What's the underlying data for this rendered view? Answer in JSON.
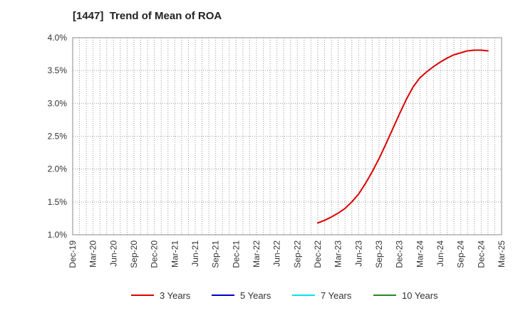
{
  "chart_data": {
    "type": "line",
    "title": "[1447]  Trend of Mean of ROA",
    "xlabel": "",
    "ylabel": "",
    "x_ticks": [
      "Dec-19",
      "Mar-20",
      "Jun-20",
      "Sep-20",
      "Dec-20",
      "Mar-21",
      "Jun-21",
      "Sep-21",
      "Dec-21",
      "Mar-22",
      "Jun-22",
      "Sep-22",
      "Dec-22",
      "Mar-23",
      "Jun-23",
      "Sep-23",
      "Dec-23",
      "Mar-24",
      "Jun-24",
      "Sep-24",
      "Dec-24",
      "Mar-25"
    ],
    "y_ticks": [
      "1.0%",
      "1.5%",
      "2.0%",
      "2.5%",
      "3.0%",
      "3.5%",
      "4.0%"
    ],
    "ylim": [
      1.0,
      4.0
    ],
    "y_unit": "%",
    "grid": true,
    "legend_position": "bottom",
    "series": [
      {
        "name": "3 Years",
        "color": "#dd0000",
        "points": [
          [
            "Dec-22",
            1.18
          ],
          [
            "Jan-23",
            1.22
          ],
          [
            "Feb-23",
            1.27
          ],
          [
            "Mar-23",
            1.33
          ],
          [
            "Apr-23",
            1.4
          ],
          [
            "May-23",
            1.5
          ],
          [
            "Jun-23",
            1.62
          ],
          [
            "Jul-23",
            1.78
          ],
          [
            "Aug-23",
            1.96
          ],
          [
            "Sep-23",
            2.16
          ],
          [
            "Oct-23",
            2.38
          ],
          [
            "Nov-23",
            2.61
          ],
          [
            "Dec-23",
            2.84
          ],
          [
            "Jan-24",
            3.06
          ],
          [
            "Feb-24",
            3.25
          ],
          [
            "Mar-24",
            3.39
          ],
          [
            "Apr-24",
            3.48
          ],
          [
            "May-24",
            3.56
          ],
          [
            "Jun-24",
            3.63
          ],
          [
            "Jul-24",
            3.69
          ],
          [
            "Aug-24",
            3.74
          ],
          [
            "Sep-24",
            3.77
          ],
          [
            "Oct-24",
            3.8
          ],
          [
            "Nov-24",
            3.81
          ],
          [
            "Dec-24",
            3.81
          ],
          [
            "Jan-25",
            3.8
          ]
        ]
      },
      {
        "name": "5 Years",
        "color": "#0000cc",
        "points": []
      },
      {
        "name": "7 Years",
        "color": "#00e5ee",
        "points": []
      },
      {
        "name": "10 Years",
        "color": "#228b22",
        "points": []
      }
    ]
  }
}
